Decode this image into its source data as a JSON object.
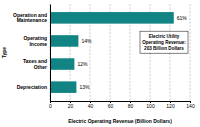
{
  "chart_data": {
    "type": "bar",
    "orientation": "horizontal",
    "categories": [
      "Operation and Maintenance",
      "Operating Income",
      "Taxes and Other",
      "Depreciation"
    ],
    "values": [
      123.8,
      28.4,
      24.4,
      26.4
    ],
    "value_labels": [
      "61%",
      "14%",
      "12%",
      "13%"
    ],
    "data_labels": true,
    "color": "#138484",
    "xlabel": "Electric Operating Revenue (Billion Dollars)",
    "ylabel": "Type",
    "xlim": [
      0,
      140
    ],
    "xticks": [
      0,
      20,
      40,
      60,
      80,
      100,
      120,
      140
    ],
    "grid": true,
    "annotation": [
      "Electric Utility",
      "Operating Revenue:",
      "203 Billion Dollars"
    ]
  }
}
